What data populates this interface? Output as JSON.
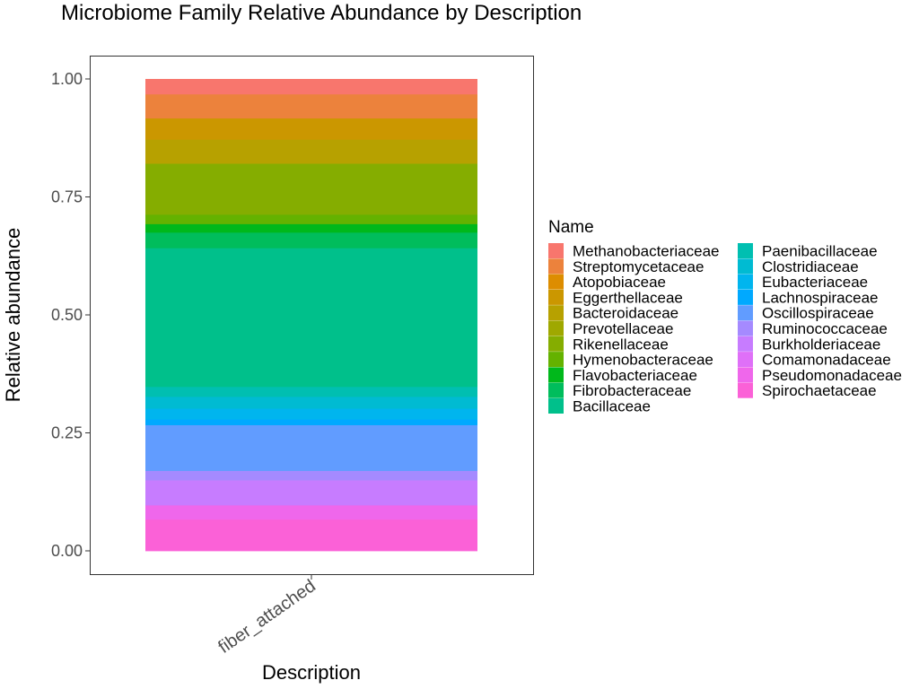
{
  "chart_data": {
    "type": "bar",
    "stacked": true,
    "title": "Microbiome Family Relative Abundance by Description",
    "xlabel": "Description",
    "ylabel": "Relative abundance",
    "categories": [
      "fiber_attached"
    ],
    "ylim": [
      0,
      1
    ],
    "yticks": [
      "0.00",
      "0.25",
      "0.50",
      "0.75",
      "1.00"
    ],
    "ytick_values": [
      0,
      0.25,
      0.5,
      0.75,
      1.0
    ],
    "grid": false,
    "legend_title": "Name",
    "legend_position": "right",
    "series": [
      {
        "name": "Methanobacteriaceae",
        "color": "#F8766D",
        "values": [
          0.032
        ]
      },
      {
        "name": "Streptomycetaceae",
        "color": "#EC823C",
        "values": [
          0.051
        ]
      },
      {
        "name": "Atopobiaceae",
        "color": "#DD8D00",
        "values": [
          0.0
        ]
      },
      {
        "name": "Eggerthellaceae",
        "color": "#CB9700",
        "values": [
          0.045
        ]
      },
      {
        "name": "Bacteroidaceae",
        "color": "#B7A100",
        "values": [
          0.051
        ]
      },
      {
        "name": "Prevotellaceae",
        "color": "#9FA800",
        "values": [
          0.0
        ]
      },
      {
        "name": "Rikenellaceae",
        "color": "#85AD00",
        "values": [
          0.108
        ]
      },
      {
        "name": "Hymenobacteraceae",
        "color": "#64B200",
        "values": [
          0.02
        ]
      },
      {
        "name": "Flavobacteriaceae",
        "color": "#00B81B",
        "values": [
          0.018
        ]
      },
      {
        "name": "Fibrobacteraceae",
        "color": "#00BD5C",
        "values": [
          0.033
        ]
      },
      {
        "name": "Bacillaceae",
        "color": "#00C08B",
        "values": [
          0.294
        ]
      },
      {
        "name": "Paenibacillaceae",
        "color": "#00BFB1",
        "values": [
          0.021
        ]
      },
      {
        "name": "Clostridiaceae",
        "color": "#00BBD2",
        "values": [
          0.025
        ]
      },
      {
        "name": "Eubacteriaceae",
        "color": "#00B5EE",
        "values": [
          0.023
        ]
      },
      {
        "name": "Lachnospiraceae",
        "color": "#00A9FF",
        "values": [
          0.012
        ]
      },
      {
        "name": "Oscillospiraceae",
        "color": "#619CFF",
        "values": [
          0.097
        ]
      },
      {
        "name": "Ruminococcaceae",
        "color": "#A58AFF",
        "values": [
          0.02
        ]
      },
      {
        "name": "Burkholderiaceae",
        "color": "#C77CFF",
        "values": [
          0.053
        ]
      },
      {
        "name": "Comamonadaceae",
        "color": "#DF70F8",
        "values": [
          0.0
        ]
      },
      {
        "name": "Pseudomonadaceae",
        "color": "#EF67EB",
        "values": [
          0.03
        ]
      },
      {
        "name": "Spirochaetaceae",
        "color": "#FB61D7",
        "values": [
          0.067
        ]
      }
    ],
    "stack_order_from_bottom": [
      "Spirochaetaceae",
      "Pseudomonadaceae",
      "Comamonadaceae",
      "Burkholderiaceae",
      "Ruminococcaceae",
      "Oscillospiraceae",
      "Lachnospiraceae",
      "Eubacteriaceae",
      "Clostridiaceae",
      "Paenibacillaceae",
      "Bacillaceae",
      "Fibrobacteraceae",
      "Flavobacteriaceae",
      "Hymenobacteraceae",
      "Rikenellaceae",
      "Prevotellaceae",
      "Bacteroidaceae",
      "Eggerthellaceae",
      "Atopobiaceae",
      "Streptomycetaceae",
      "Methanobacteriaceae"
    ]
  }
}
